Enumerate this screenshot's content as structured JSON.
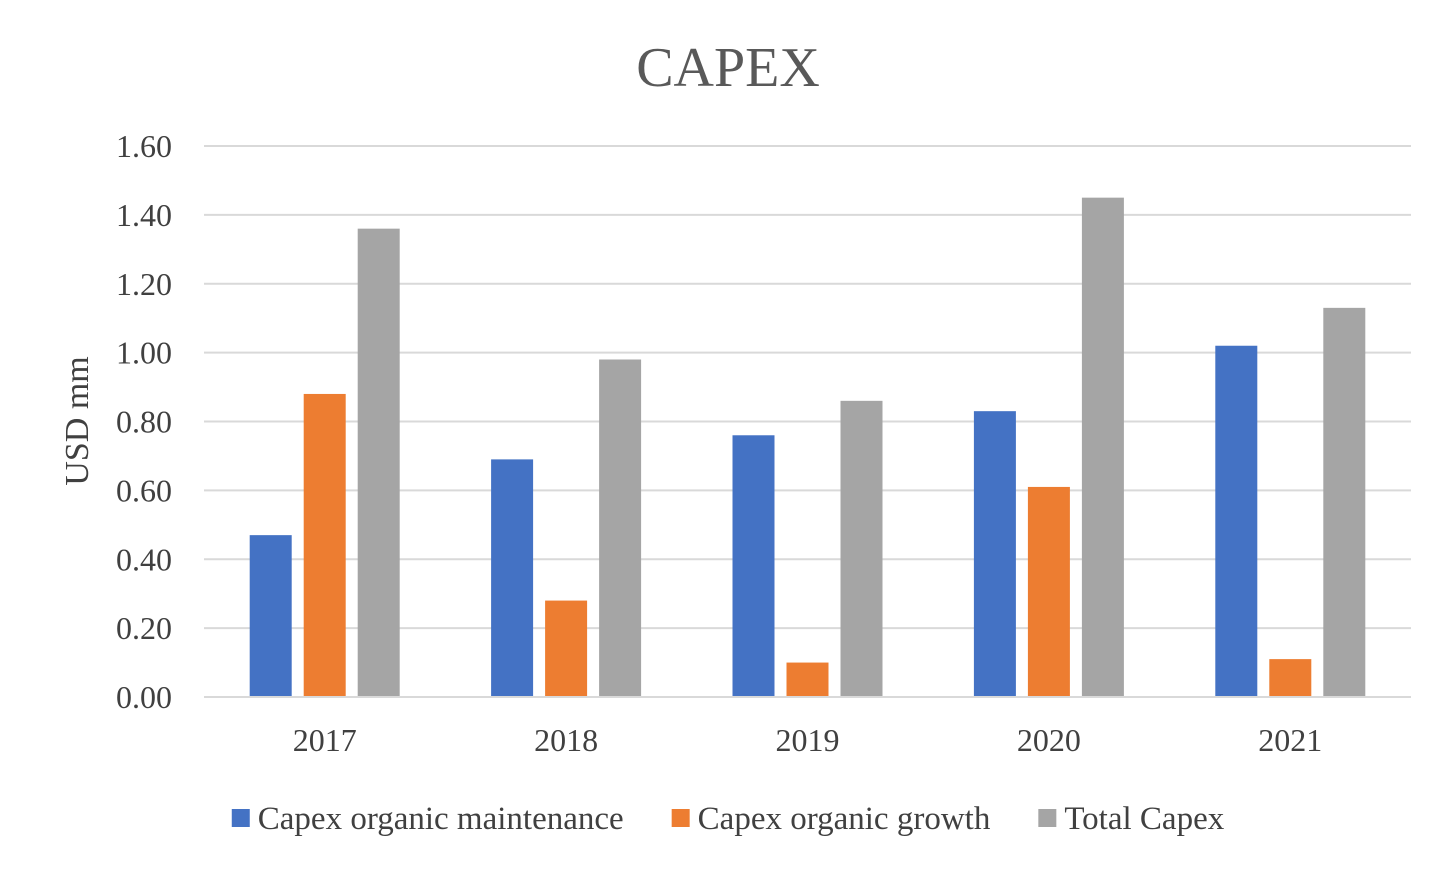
{
  "chart_data": {
    "type": "bar",
    "title": "CAPEX",
    "xlabel": "",
    "ylabel": "USD mm",
    "categories": [
      "2017",
      "2018",
      "2019",
      "2020",
      "2021"
    ],
    "series": [
      {
        "name": "Capex organic maintenance",
        "color": "#4472c4",
        "values": [
          0.47,
          0.69,
          0.76,
          0.83,
          1.02
        ]
      },
      {
        "name": "Capex organic growth",
        "color": "#ed7d31",
        "values": [
          0.88,
          0.28,
          0.1,
          0.61,
          0.11
        ]
      },
      {
        "name": "Total Capex",
        "color": "#a5a5a5",
        "values": [
          1.36,
          0.98,
          0.86,
          1.45,
          1.13
        ]
      }
    ],
    "ylim": [
      0,
      1.6
    ],
    "yticks": [
      "0.00",
      "0.20",
      "0.40",
      "0.60",
      "0.80",
      "1.00",
      "1.20",
      "1.40",
      "1.60"
    ],
    "grid": true,
    "legend_position": "bottom"
  }
}
